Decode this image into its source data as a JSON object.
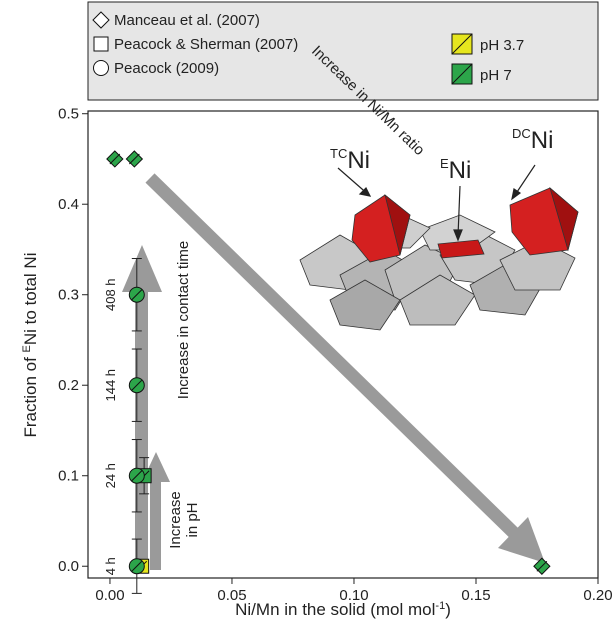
{
  "chart_data": {
    "type": "scatter",
    "x_label": {
      "start": "Ni/Mn in the solid (mol mol",
      "sup": "-1",
      "end": ")"
    },
    "y_label": {
      "start": "Fraction of ",
      "sup": "E",
      "end": "Ni to total Ni"
    },
    "xlim": [
      -0.009,
      0.2
    ],
    "ylim": [
      -0.013,
      0.503
    ],
    "xticks": [
      {
        "value": 0,
        "label": "0.00"
      },
      {
        "value": 0.05,
        "label": "0.05"
      },
      {
        "value": 0.1,
        "label": "0.10"
      },
      {
        "value": 0.15,
        "label": "0.15"
      },
      {
        "value": 0.2,
        "label": "0.20"
      }
    ],
    "yticks": [
      {
        "value": 0,
        "label": "0.0"
      },
      {
        "value": 0.1,
        "label": "0.1"
      },
      {
        "value": 0.2,
        "label": "0.2"
      },
      {
        "value": 0.3,
        "label": "0.3"
      },
      {
        "value": 0.4,
        "label": "0.4"
      },
      {
        "value": 0.5,
        "label": "0.5"
      }
    ],
    "series": [
      {
        "name": "Manceau et al. (2007)",
        "marker": "diamond",
        "x": [
          0.002,
          0.01,
          0.177
        ],
        "values": [
          0.45,
          0.45,
          0.0
        ],
        "colors": [
          "#2ca54a",
          "#2ca54a",
          "#2ca54a"
        ]
      },
      {
        "name": "Peacock & Sherman (2007)",
        "marker": "square",
        "x": [
          0.014,
          0.013
        ],
        "values": [
          0.1,
          0.0
        ],
        "errors": [
          0.02,
          0.0
        ],
        "x_errors": [
          0.003,
          0.0
        ],
        "colors": [
          "#2ca54a",
          "#e6e61e"
        ]
      },
      {
        "name": "Peacock (2009)",
        "marker": "circle",
        "x": [
          0.011,
          0.011,
          0.011,
          0.011
        ],
        "values": [
          0.0,
          0.1,
          0.2,
          0.3
        ],
        "errors": [
          0.03,
          0.04,
          0.04,
          0.04
        ],
        "colors": [
          "#2ca54a",
          "#2ca54a",
          "#2ca54a",
          "#2ca54a"
        ],
        "point_labels": [
          "4 h",
          "24 h",
          "144 h",
          "408 h"
        ]
      }
    ],
    "color_legend": [
      {
        "name": "pH 3.7",
        "color": "#e6e61e"
      },
      {
        "name": "pH 7",
        "color": "#2ca54a"
      }
    ],
    "annotations": {
      "ratio": "Increase in Ni/Mn ratio",
      "contact": "Increase in contact time",
      "ph": [
        "Increase",
        "in pH"
      ],
      "sites": [
        {
          "sup": "TC",
          "main": "Ni"
        },
        {
          "sup": "E",
          "main": "Ni"
        },
        {
          "sup": "DC",
          "main": "Ni"
        }
      ]
    }
  }
}
